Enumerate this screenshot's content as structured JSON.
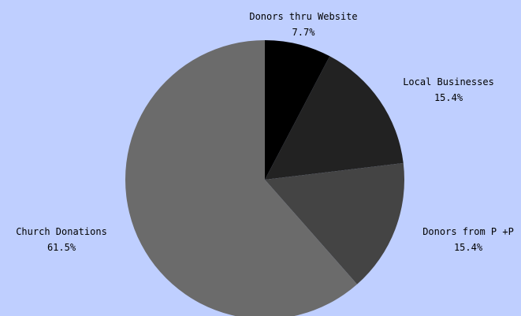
{
  "background": "#bfcfff",
  "chart_data": {
    "type": "pie",
    "title": "",
    "start_angle_deg": 90,
    "direction": "clockwise",
    "slices": [
      {
        "label": "Donors thru Website",
        "value": 7.7,
        "pct_text": "7.7%",
        "color": "#000000"
      },
      {
        "label": "Local Businesses",
        "value": 15.4,
        "pct_text": "15.4%",
        "color": "#222222"
      },
      {
        "label": "Donors from P +P",
        "value": 15.4,
        "pct_text": "15.4%",
        "color": "#444444"
      },
      {
        "label": "Church Donations",
        "value": 61.5,
        "pct_text": "61.5%",
        "color": "#6b6b6b"
      }
    ]
  }
}
